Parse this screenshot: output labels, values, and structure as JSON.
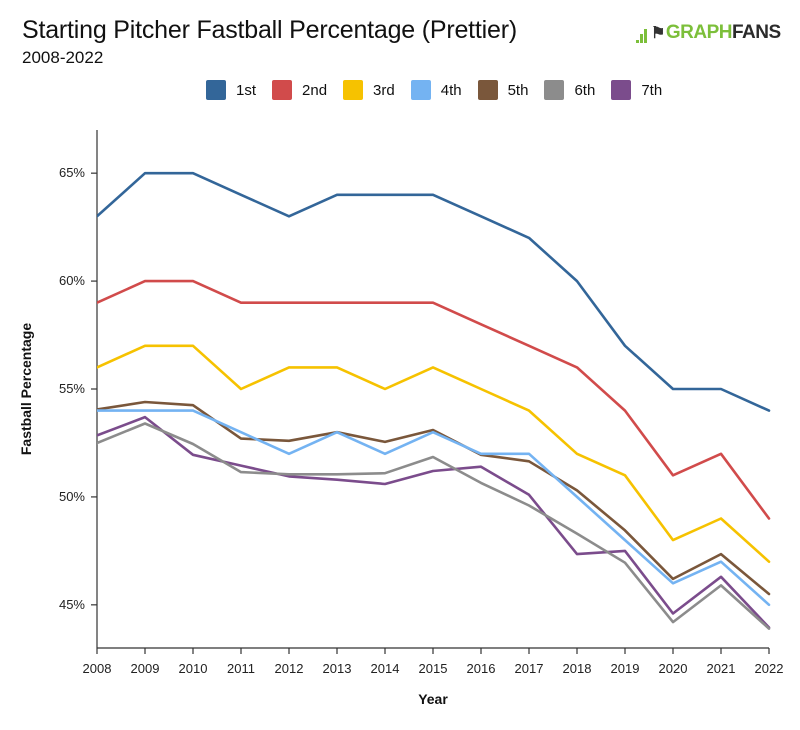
{
  "header": {
    "title": "Starting Pitcher Fastball Percentage (Prettier)",
    "subtitle": "2008-2022",
    "logo_text_green": "GRAPH",
    "logo_text_dark": "FANS"
  },
  "chart_data": {
    "type": "line",
    "title": "Starting Pitcher Fastball Percentage (Prettier)",
    "subtitle": "2008-2022",
    "xlabel": "Year",
    "ylabel": "Fastball Percentage",
    "x": [
      2008,
      2009,
      2010,
      2011,
      2012,
      2013,
      2014,
      2015,
      2016,
      2017,
      2018,
      2019,
      2020,
      2021,
      2022
    ],
    "ylim": [
      43,
      67
    ],
    "yticks": [
      45,
      50,
      55,
      60,
      65
    ],
    "ytick_labels": [
      "45%",
      "50%",
      "55%",
      "60%",
      "65%"
    ],
    "grid": false,
    "legend_position": "top",
    "series": [
      {
        "name": "1st",
        "color": "#336699",
        "values": [
          63,
          65,
          65,
          64,
          63,
          64,
          64,
          64,
          63,
          62,
          60,
          57,
          55,
          55,
          54
        ]
      },
      {
        "name": "2nd",
        "color": "#d14b4b",
        "values": [
          59,
          60,
          60,
          59,
          59,
          59,
          59,
          59,
          58,
          57,
          56,
          54,
          51,
          52,
          49
        ]
      },
      {
        "name": "3rd",
        "color": "#f6c200",
        "values": [
          56,
          57,
          57,
          55,
          56,
          56,
          55,
          56,
          55,
          54,
          52,
          51,
          48,
          49,
          47
        ]
      },
      {
        "name": "4th",
        "color": "#74b3f2",
        "values": [
          54,
          54,
          54,
          53,
          52,
          53,
          52,
          53,
          52,
          52,
          50,
          48,
          46,
          47,
          45
        ]
      },
      {
        "name": "5th",
        "color": "#7a573b",
        "values": [
          54.05,
          54.4,
          54.25,
          52.7,
          52.6,
          53,
          52.55,
          53.1,
          51.95,
          51.65,
          50.3,
          48.45,
          46.2,
          47.35,
          45.5
        ]
      },
      {
        "name": "6th",
        "color": "#8c8c8c",
        "values": [
          52.5,
          53.4,
          52.45,
          51.15,
          51.05,
          51.05,
          51.1,
          51.85,
          50.65,
          49.6,
          48.3,
          46.95,
          44.2,
          45.9,
          43.9
        ]
      },
      {
        "name": "7th",
        "color": "#7b4c8c",
        "values": [
          52.85,
          53.7,
          51.95,
          51.45,
          50.95,
          50.8,
          50.6,
          51.2,
          51.4,
          50.1,
          47.35,
          47.5,
          44.6,
          46.3,
          43.95
        ]
      }
    ]
  }
}
